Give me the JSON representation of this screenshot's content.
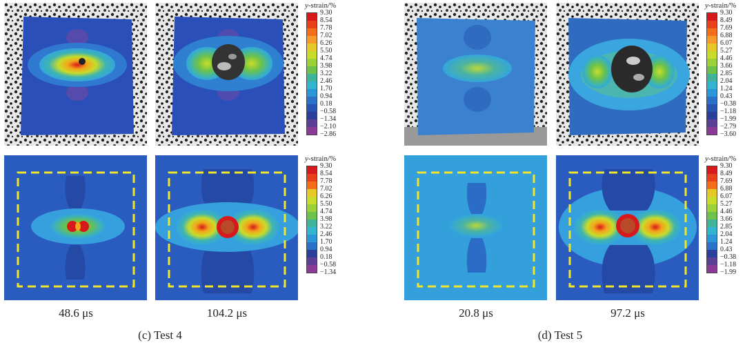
{
  "tests": [
    {
      "id": "test4",
      "caption": "(c) Test 4",
      "times": [
        "48.6 μs",
        "104.2 μs"
      ]
    },
    {
      "id": "test5",
      "caption": "(d) Test 5",
      "times": [
        "20.8 μs",
        "97.2 μs"
      ]
    }
  ],
  "colorbars": {
    "title_italic": "y",
    "title_rest": "-strain/%",
    "colors": [
      "#d7191c",
      "#e8411a",
      "#f46d1a",
      "#f79a2a",
      "#e6c826",
      "#c8dc2a",
      "#9bd23a",
      "#6cc24a",
      "#4cb35e",
      "#3fb49a",
      "#33b4d0",
      "#2b96d8",
      "#2a72c8",
      "#2654b0",
      "#2a3f9a",
      "#5b3f96",
      "#8a3b96"
    ],
    "test4_top": [
      "9.30",
      "8.54",
      "7.78",
      "7.02",
      "6.26",
      "5.50",
      "4.74",
      "3.98",
      "3.22",
      "2.46",
      "1.70",
      "0.94",
      "0.18",
      "−0.58",
      "−1.34",
      "−2.10",
      "−2.86"
    ],
    "test4_bottom": [
      "9.30",
      "8.54",
      "7.78",
      "7.02",
      "6.26",
      "5.50",
      "4.74",
      "3.98",
      "3.22",
      "2.46",
      "1.70",
      "0.94",
      "0.18",
      "−0.58",
      "−1.34"
    ],
    "test5_top": [
      "9.30",
      "8.49",
      "7.69",
      "6.88",
      "6.07",
      "5.27",
      "4.46",
      "3.66",
      "2.85",
      "2.04",
      "1.24",
      "0.43",
      "−0.38",
      "−1.18",
      "−1.99",
      "−2.79",
      "−3.60"
    ],
    "test5_bottom": [
      "9.30",
      "8.49",
      "7.69",
      "6.88",
      "6.07",
      "5.27",
      "4.46",
      "3.66",
      "2.85",
      "2.04",
      "1.24",
      "0.43",
      "−0.38",
      "−1.18",
      "−1.99"
    ]
  }
}
